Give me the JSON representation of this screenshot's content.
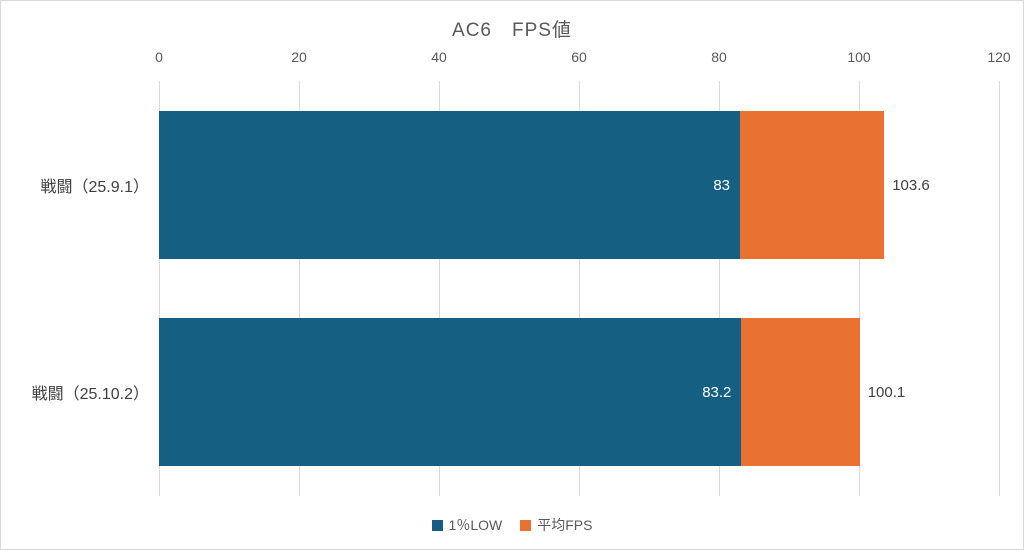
{
  "chart_data": {
    "type": "bar",
    "orientation": "horizontal",
    "title": "AC6　FPS値",
    "categories": [
      "戦闘（25.9.1）",
      "戦闘（25.10.2）"
    ],
    "series": [
      {
        "name": "1％LOW",
        "color": "#156082",
        "values": [
          83,
          83.2
        ],
        "label_position": "inside-end",
        "label_color": "#FFFFFF"
      },
      {
        "name": "平均FPS",
        "color": "#E97132",
        "values": [
          103.6,
          100.1
        ],
        "label_position": "outside-end",
        "label_color": "#404040"
      }
    ],
    "value_labels": [
      {
        "low": "83",
        "avg": "103.6"
      },
      {
        "low": "83.2",
        "avg": "100.1"
      }
    ],
    "bar_style": "overlapped",
    "xlim": [
      0,
      120
    ],
    "xticks": [
      "0",
      "20",
      "40",
      "60",
      "80",
      "100",
      "120"
    ],
    "grid": true,
    "gridline_color": "#D9D9D9",
    "axis_position": "top",
    "legend_position": "bottom",
    "background": "#FFFFFF",
    "border_color": "#D9D9D9",
    "text_colors": {
      "title": "#595959",
      "ticks": "#595959",
      "categories": "#404040"
    }
  }
}
